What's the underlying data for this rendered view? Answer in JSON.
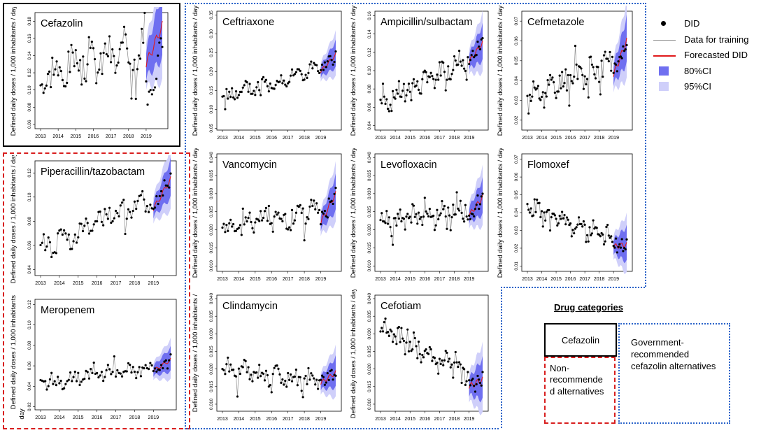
{
  "colors": {
    "observed": "#000000",
    "training": "#8a8a8a",
    "forecast": "#e0191b",
    "ci80": "#6f6ff0",
    "ci95": "#cfcffa",
    "black_frame": "#000000",
    "red_frame": "#d81e1e",
    "blue_frame": "#2a63c9"
  },
  "years": [
    "2013",
    "2014",
    "2015",
    "2016",
    "2017",
    "2018",
    "2019"
  ],
  "legend": {
    "did": "DID",
    "training": "Data for training",
    "forecast": "Forecasted DID",
    "ci80": "80%CI",
    "ci95": "95%CI"
  },
  "categories": {
    "title": "Drug categories",
    "cefazolin": "Cefazolin",
    "non_recommended": "Non-\nrecommende\nd alternatives",
    "government": "Government-\nrecommended\ncefazolin alternatives"
  },
  "ylabels": {
    "full": "Defined daily doses / 1,000 inhabitants / day",
    "cut1": "Defined daily doses / 1,000 inhabitants /",
    "cut2": "day"
  },
  "chart_data": [
    {
      "name": "Cefazolin",
      "type": "line",
      "ylim": [
        0.055,
        0.19
      ],
      "yticks": [
        "0.06",
        "0.08",
        "0.10",
        "0.12",
        "0.14",
        "0.16",
        "0.18"
      ],
      "start": 0.115,
      "end": 0.15,
      "amp": 0.02,
      "seed": 3,
      "fc_start": 0.13,
      "fc_end": 0.175,
      "actual_2019": [
        0.11,
        0.083,
        0.098,
        0.1,
        0.095,
        0.1,
        0.103,
        0.113,
        0.14,
        0.155,
        0.16,
        0.15
      ]
    },
    {
      "name": "Ceftriaxone",
      "type": "line",
      "ylim": [
        0.045,
        0.36
      ],
      "yticks": [
        "0.05",
        "0.10",
        "0.15",
        "0.20",
        "0.25",
        "0.30",
        "0.35"
      ],
      "start": 0.13,
      "end": 0.21,
      "amp": 0.018,
      "seed": 5,
      "fc_start": 0.2,
      "fc_end": 0.245
    },
    {
      "name": "Ampicillin/sulbactam",
      "type": "line",
      "ylim": [
        0.035,
        0.165
      ],
      "yticks": [
        "0.04",
        "0.06",
        "0.08",
        "0.10",
        "0.12",
        "0.14",
        "0.16"
      ],
      "start": 0.063,
      "end": 0.115,
      "amp": 0.01,
      "seed": 7,
      "fc_start": 0.11,
      "fc_end": 0.13
    },
    {
      "name": "Cefmetazole",
      "type": "line",
      "ylim": [
        0.015,
        0.075
      ],
      "yticks": [
        "0.02",
        "0.03",
        "0.04",
        "0.05",
        "0.06",
        "0.07"
      ],
      "start": 0.031,
      "end": 0.05,
      "amp": 0.006,
      "seed": 11,
      "fc_start": 0.043,
      "fc_end": 0.06
    },
    {
      "name": "Piperacillin/tazobactam",
      "type": "line",
      "ylim": [
        0.035,
        0.13
      ],
      "yticks": [
        "0.04",
        "0.06",
        "0.08",
        "0.10",
        "0.12"
      ],
      "start": 0.057,
      "end": 0.1,
      "amp": 0.008,
      "seed": 13,
      "fc_start": 0.09,
      "fc_end": 0.115
    },
    {
      "name": "Vancomycin",
      "type": "line",
      "ylim": [
        0.0085,
        0.041
      ],
      "yticks": [
        "0.010",
        "0.015",
        "0.020",
        "0.025",
        "0.030",
        "0.035",
        "0.040"
      ],
      "start": 0.021,
      "end": 0.025,
      "amp": 0.0025,
      "seed": 17,
      "fc_start": 0.022,
      "fc_end": 0.03
    },
    {
      "name": "Levofloxacin",
      "type": "line",
      "ylim": [
        0.0085,
        0.041
      ],
      "yticks": [
        "0.010",
        "0.015",
        "0.020",
        "0.025",
        "0.030",
        "0.035",
        "0.040"
      ],
      "start": 0.022,
      "end": 0.026,
      "amp": 0.0025,
      "seed": 19,
      "fc_start": 0.024,
      "fc_end": 0.029
    },
    {
      "name": "Flomoxef",
      "type": "line",
      "ylim": [
        0.007,
        0.073
      ],
      "yticks": [
        "0.01",
        "0.02",
        "0.03",
        "0.04",
        "0.05",
        "0.06",
        "0.07"
      ],
      "start": 0.043,
      "end": 0.025,
      "amp": 0.005,
      "seed": 23,
      "fc_start": 0.021,
      "fc_end": 0.022
    },
    {
      "name": "Meropenem",
      "type": "line",
      "ylim": [
        0.017,
        0.125
      ],
      "yticks": [
        "0.02",
        "0.04",
        "0.06",
        "0.08",
        "0.10",
        "0.12"
      ],
      "start": 0.043,
      "end": 0.058,
      "amp": 0.006,
      "seed": 29,
      "fc_start": 0.055,
      "fc_end": 0.066
    },
    {
      "name": "Clindamycin",
      "type": "line",
      "ylim": [
        0.008,
        0.041
      ],
      "yticks": [
        "0.010",
        "0.015",
        "0.020",
        "0.025",
        "0.030",
        "0.035",
        "0.040"
      ],
      "start": 0.02,
      "end": 0.0165,
      "amp": 0.0022,
      "seed": 31,
      "fc_start": 0.016,
      "fc_end": 0.019
    },
    {
      "name": "Cefotiam",
      "type": "line",
      "ylim": [
        0.008,
        0.041
      ],
      "yticks": [
        "0.010",
        "0.015",
        "0.020",
        "0.025",
        "0.030",
        "0.035",
        "0.040"
      ],
      "start": 0.031,
      "end": 0.019,
      "amp": 0.003,
      "seed": 37,
      "fc_start": 0.015,
      "fc_end": 0.017
    }
  ]
}
